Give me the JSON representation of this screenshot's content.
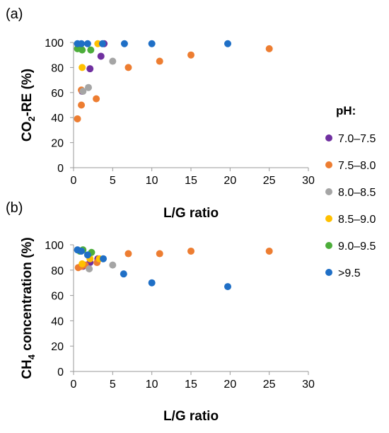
{
  "colors": {
    "7.0–7.5": "#7030a0",
    "7.5–8.0": "#ed7d31",
    "8.0–8.5": "#a5a5a5",
    "8.5–9.0": "#ffc000",
    "9.0–9.5": "#4cad3a",
    ">9.5": "#1f6fc6"
  },
  "legend": {
    "title": "pH:",
    "entries": [
      "7.0–7.5",
      "7.5–8.0",
      "8.0–8.5",
      "8.5–9.0",
      "9.0–9.5",
      ">9.5"
    ],
    "placement": "right-center"
  },
  "chart_data": [
    {
      "type": "scatter",
      "panel_label": "(a)",
      "xlabel": "L/G ratio",
      "ylabel_parts": [
        "CO",
        "2",
        "-RE (%)"
      ],
      "xlim": [
        0,
        30
      ],
      "ylim": [
        0,
        100
      ],
      "xticks": [
        "0",
        "5",
        "10",
        "15",
        "20",
        "25",
        "30"
      ],
      "yticks": [
        "0",
        "20",
        "40",
        "60",
        "80",
        "100"
      ],
      "grid": false,
      "series": [
        {
          "name": "7.0–7.5",
          "points": [
            [
              1.1,
              61
            ],
            [
              2.1,
              79
            ],
            [
              3.5,
              89
            ],
            [
              3.9,
              99
            ]
          ]
        },
        {
          "name": "7.5–8.0",
          "points": [
            [
              0.5,
              39
            ],
            [
              1.0,
              50
            ],
            [
              1.0,
              62
            ],
            [
              2.9,
              55
            ],
            [
              7.0,
              80
            ],
            [
              11.0,
              85
            ],
            [
              15.0,
              90
            ],
            [
              25.0,
              95
            ]
          ]
        },
        {
          "name": "8.0–8.5",
          "points": [
            [
              1.2,
              61
            ],
            [
              1.9,
              64
            ],
            [
              5.0,
              85
            ]
          ]
        },
        {
          "name": "8.5–9.0",
          "points": [
            [
              1.1,
              80
            ],
            [
              3.1,
              99
            ]
          ]
        },
        {
          "name": "9.0–9.5",
          "points": [
            [
              0.5,
              95
            ],
            [
              1.1,
              94
            ],
            [
              2.2,
              94
            ]
          ]
        },
        {
          "name": ">9.5",
          "points": [
            [
              0.5,
              99
            ],
            [
              1.0,
              99
            ],
            [
              1.8,
              99
            ],
            [
              3.7,
              99
            ],
            [
              6.5,
              99
            ],
            [
              10.0,
              99
            ],
            [
              19.7,
              99
            ]
          ]
        }
      ]
    },
    {
      "type": "scatter",
      "panel_label": "(b)",
      "xlabel": "L/G ratio",
      "ylabel_parts": [
        "CH",
        "4",
        " concentration (%)"
      ],
      "xlim": [
        0,
        30
      ],
      "ylim": [
        0,
        100
      ],
      "xticks": [
        "0",
        "5",
        "10",
        "15",
        "20",
        "25",
        "30"
      ],
      "yticks": [
        "0",
        "20",
        "40",
        "60",
        "80",
        "100"
      ],
      "grid": false,
      "series": [
        {
          "name": "7.0–7.5",
          "points": [
            [
              1.2,
              83
            ],
            [
              2.1,
              86
            ],
            [
              3.1,
              89
            ]
          ]
        },
        {
          "name": "7.5–8.0",
          "points": [
            [
              0.6,
              82
            ],
            [
              1.0,
              83
            ],
            [
              1.5,
              84
            ],
            [
              3.0,
              86
            ],
            [
              7.0,
              93
            ],
            [
              11.0,
              93
            ],
            [
              15.0,
              95
            ],
            [
              25.0,
              95
            ]
          ]
        },
        {
          "name": "8.0–8.5",
          "points": [
            [
              2.0,
              81
            ],
            [
              5.0,
              84
            ]
          ]
        },
        {
          "name": "8.5–9.0",
          "points": [
            [
              1.1,
              85
            ],
            [
              2.1,
              89
            ],
            [
              3.3,
              89
            ]
          ]
        },
        {
          "name": "9.0–9.5",
          "points": [
            [
              0.8,
              95
            ],
            [
              1.2,
              96
            ],
            [
              2.3,
              94
            ]
          ]
        },
        {
          "name": ">9.5",
          "points": [
            [
              0.5,
              96
            ],
            [
              1.0,
              95
            ],
            [
              1.8,
              92
            ],
            [
              3.8,
              89
            ],
            [
              6.4,
              77
            ],
            [
              10.0,
              70
            ],
            [
              19.7,
              67
            ]
          ]
        }
      ]
    }
  ]
}
